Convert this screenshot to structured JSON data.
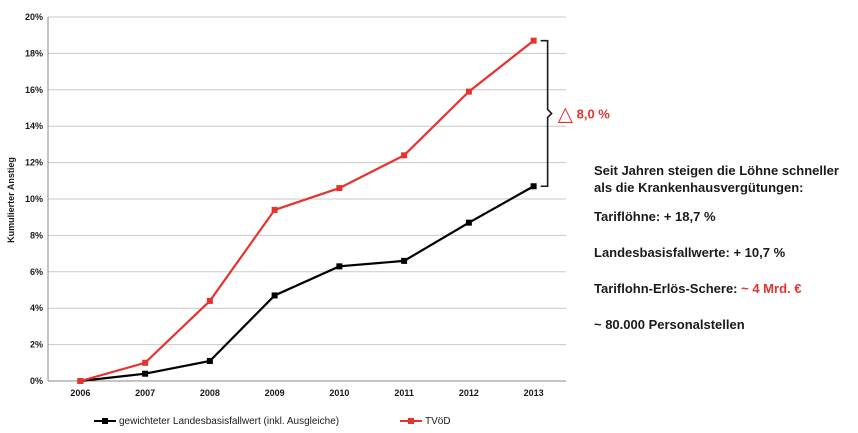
{
  "chart_data": {
    "type": "line",
    "ylabel": "Kumulierter Anstieg",
    "x": [
      "2006",
      "2007",
      "2008",
      "2009",
      "2010",
      "2011",
      "2012",
      "2013"
    ],
    "ylim": [
      0,
      20
    ],
    "yticks": [
      "0%",
      "2%",
      "4%",
      "6%",
      "8%",
      "10%",
      "12%",
      "14%",
      "16%",
      "18%",
      "20%"
    ],
    "grid": true,
    "legend_position": "bottom",
    "series": [
      {
        "name": "gewichteter Landesbasisfallwert (inkl. Ausgleiche)",
        "color": "#000000",
        "values": [
          0,
          0.4,
          1.1,
          4.7,
          6.3,
          6.6,
          8.7,
          10.7
        ]
      },
      {
        "name": "TVöD",
        "color": "#e8322d",
        "values": [
          0,
          1.0,
          4.4,
          9.4,
          10.6,
          12.4,
          15.9,
          18.7
        ]
      }
    ],
    "annotation": {
      "text": "8,0 %",
      "symbol": "△",
      "color": "#e8322d"
    }
  },
  "side": {
    "intro": "Seit Jahren steigen die Löhne schneller als die Krankenhausvergütungen:",
    "tarif_label": "Tariflöhne:",
    "tarif_value": "+ 18,7 %",
    "landes_label": "Landesbasisfallwerte:",
    "landes_value": "+ 10,7 %",
    "schere_label": "Tariflohn-Erlös-Schere:",
    "schere_value": "~ 4 Mrd. €",
    "personal": "~ 80.000 Personalstellen"
  }
}
